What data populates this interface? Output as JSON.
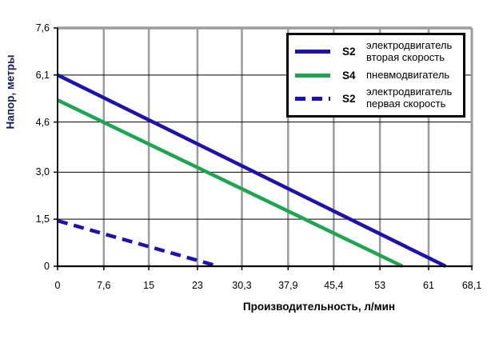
{
  "chart_data": {
    "type": "line",
    "title": "",
    "xlabel": "Производительность, л/мин",
    "ylabel": "Напор, метры",
    "xlim": [
      0,
      68.1
    ],
    "ylim": [
      0,
      7.6
    ],
    "x_ticks": [
      "0",
      "7,6",
      "15",
      "23",
      "30,3",
      "37,9",
      "45,4",
      "53",
      "61",
      "68,1"
    ],
    "x_tick_values": [
      0,
      7.6,
      15,
      23,
      30.3,
      37.9,
      45.4,
      53,
      61,
      68.1
    ],
    "y_ticks": [
      "0",
      "1,5",
      "3,0",
      "4,6",
      "6,1",
      "7,6"
    ],
    "y_tick_values": [
      0,
      1.5,
      3.0,
      4.6,
      6.1,
      7.6
    ],
    "grid": true,
    "legend_position": "top-right",
    "series": [
      {
        "name": "S2 электродвигатель вторая скорость",
        "style": "solid",
        "color": "#1d12b0",
        "points": [
          [
            0,
            6.1
          ],
          [
            63.8,
            0
          ]
        ]
      },
      {
        "name": "S4 пневмодвигатель",
        "style": "solid",
        "color": "#1ea550",
        "points": [
          [
            0,
            5.3
          ],
          [
            56.7,
            0
          ]
        ]
      },
      {
        "name": "S2 электродвигатель первая скорость",
        "style": "dashed",
        "color": "#1d12b0",
        "points": [
          [
            0,
            1.45
          ],
          [
            26.4,
            0
          ]
        ]
      }
    ]
  },
  "legend": {
    "items": [
      {
        "code": "S2",
        "label_line1": "электродвигатель",
        "label_line2": "вторая скорость",
        "style": "solid",
        "color": "#1d12b0"
      },
      {
        "code": "S4",
        "label_line1": "пневмодвигатель",
        "label_line2": "",
        "style": "solid",
        "color": "#1ea550"
      },
      {
        "code": "S2",
        "label_line1": "электродвигатель",
        "label_line2": "первая скорость",
        "style": "dashed",
        "color": "#1d12b0"
      }
    ]
  },
  "colors": {
    "line_blue": "#1d12b0",
    "line_green": "#1ea550",
    "grid_gray": "#9c9c9c",
    "gridline_black": "#000000",
    "axis_black": "#000000",
    "y_title_navy": "#1a1a5e",
    "background": "#ffffff"
  }
}
